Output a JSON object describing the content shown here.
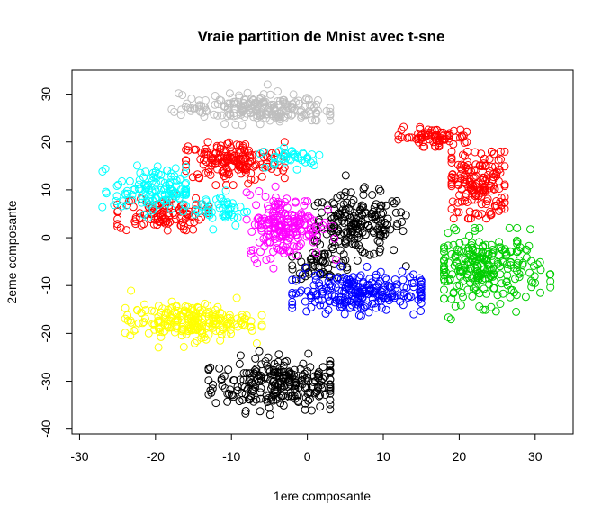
{
  "chart_data": {
    "type": "scatter",
    "title": "Vraie partition de Mnist avec t-sne",
    "xlabel": "1ere composante",
    "ylabel": "2eme composante",
    "xlim": [
      -31,
      35
    ],
    "ylim": [
      -41,
      35
    ],
    "x_ticks": [
      -30,
      -20,
      -10,
      0,
      10,
      20,
      30
    ],
    "y_ticks": [
      -40,
      -30,
      -20,
      -10,
      0,
      10,
      20,
      30
    ],
    "x_tick_labels": [
      "-30",
      "-20",
      "-10",
      "0",
      "10",
      "20",
      "30"
    ],
    "y_tick_labels": [
      "-40",
      "-30",
      "-20",
      "-10",
      "0",
      "10",
      "20",
      "30"
    ],
    "grid": false,
    "marker": "open-circle",
    "series": [
      {
        "color": "#000000",
        "clusters": [
          {
            "cx": -3.5,
            "cy": -30.5,
            "rx": 7.5,
            "ry": 4.5,
            "n": 260,
            "x": [
              -13,
              3
            ],
            "y": [
              -37,
              -23
            ]
          },
          {
            "cx": 6.5,
            "cy": 2.5,
            "rx": 5.5,
            "ry": 5.5,
            "n": 200,
            "x": [
              1,
              13
            ],
            "y": [
              -8,
              13
            ]
          },
          {
            "cx": 2.0,
            "cy": -5.5,
            "rx": 3.5,
            "ry": 2.5,
            "n": 50,
            "x": [
              -2,
              6
            ],
            "y": [
              -9,
              -2
            ]
          }
        ]
      },
      {
        "color": "#FF0000",
        "clusters": [
          {
            "cx": -10.0,
            "cy": 16.0,
            "rx": 6.0,
            "ry": 3.5,
            "n": 170,
            "x": [
              -16,
              -3
            ],
            "y": [
              11,
              20
            ]
          },
          {
            "cx": -19.5,
            "cy": 5.0,
            "rx": 5.0,
            "ry": 3.0,
            "n": 110,
            "x": [
              -25,
              -13
            ],
            "y": [
              1,
              10
            ]
          },
          {
            "cx": 22.5,
            "cy": 11.0,
            "rx": 3.5,
            "ry": 6.5,
            "n": 170,
            "x": [
              19,
              26
            ],
            "y": [
              4,
              18
            ]
          },
          {
            "cx": 16.5,
            "cy": 21.0,
            "rx": 4.0,
            "ry": 1.6,
            "n": 80,
            "x": [
              12,
              21
            ],
            "y": [
              19,
              24
            ]
          }
        ]
      },
      {
        "color": "#00CD00",
        "clusters": [
          {
            "cx": 23.5,
            "cy": -6.5,
            "rx": 6.0,
            "ry": 6.0,
            "n": 260,
            "x": [
              18,
              32
            ],
            "y": [
              -19,
              2
            ]
          }
        ]
      },
      {
        "color": "#0000FF",
        "clusters": [
          {
            "cx": 6.5,
            "cy": -11.5,
            "rx": 7.5,
            "ry": 3.5,
            "n": 240,
            "x": [
              -2,
              15
            ],
            "y": [
              -20,
              -6
            ]
          }
        ]
      },
      {
        "color": "#00FFFF",
        "clusters": [
          {
            "cx": -20.0,
            "cy": 10.0,
            "rx": 4.5,
            "ry": 4.0,
            "n": 130,
            "x": [
              -27,
              -16
            ],
            "y": [
              1,
              17
            ]
          },
          {
            "cx": -11.5,
            "cy": 6.0,
            "rx": 3.0,
            "ry": 3.0,
            "n": 50,
            "x": [
              -17,
              -7
            ],
            "y": [
              1,
              12
            ]
          },
          {
            "cx": -2.0,
            "cy": 17.0,
            "rx": 3.5,
            "ry": 1.8,
            "n": 40,
            "x": [
              -7,
              4
            ],
            "y": [
              14,
              21
            ]
          }
        ]
      },
      {
        "color": "#FF00FF",
        "clusters": [
          {
            "cx": -3.0,
            "cy": 2.5,
            "rx": 4.0,
            "ry": 5.5,
            "n": 200,
            "x": [
              -8,
              4
            ],
            "y": [
              -9,
              13
            ]
          }
        ]
      },
      {
        "color": "#FFFF00",
        "clusters": [
          {
            "cx": -15.5,
            "cy": -17.5,
            "rx": 6.5,
            "ry": 3.0,
            "n": 230,
            "x": [
              -24,
              -6
            ],
            "y": [
              -25,
              -11
            ]
          }
        ]
      },
      {
        "color": "#BEBEBE",
        "clusters": [
          {
            "cx": -7.0,
            "cy": 27.0,
            "rx": 8.0,
            "ry": 2.5,
            "n": 220,
            "x": [
              -19,
              3
            ],
            "y": [
              22,
              32
            ]
          }
        ]
      }
    ]
  }
}
